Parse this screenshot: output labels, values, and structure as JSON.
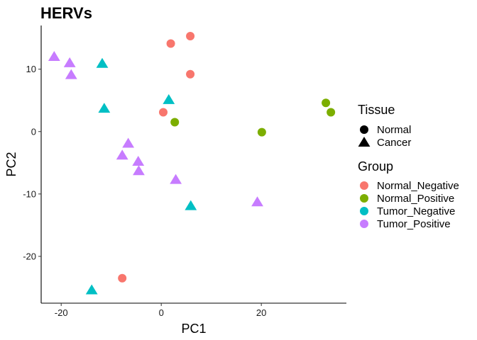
{
  "chart_data": {
    "type": "scatter",
    "title": "HERVs",
    "xlabel": "PC1",
    "ylabel": "PC2",
    "xlim": [
      -24,
      37
    ],
    "ylim": [
      -27.5,
      17
    ],
    "xticks": [
      -20,
      0,
      20
    ],
    "yticks": [
      -20,
      -10,
      0,
      10
    ],
    "grid": false,
    "legend_position": "right",
    "shape_legend": {
      "title": "Tissue",
      "items": [
        {
          "label": "Normal",
          "shape": "circle"
        },
        {
          "label": "Cancer",
          "shape": "triangle"
        }
      ]
    },
    "color_legend": {
      "title": "Group",
      "items": [
        {
          "label": "Normal_Negative",
          "color": "#F8766D"
        },
        {
          "label": "Normal_Positive",
          "color": "#7CAE00"
        },
        {
          "label": "Tumor_Negative",
          "color": "#00BFC4"
        },
        {
          "label": "Tumor_Positive",
          "color": "#C77CFF"
        }
      ]
    },
    "points": [
      {
        "x": 5.8,
        "y": 15.3,
        "group": "Normal_Negative",
        "tissue": "Normal"
      },
      {
        "x": 1.9,
        "y": 14.1,
        "group": "Normal_Negative",
        "tissue": "Normal"
      },
      {
        "x": 5.8,
        "y": 9.2,
        "group": "Normal_Negative",
        "tissue": "Normal"
      },
      {
        "x": 0.4,
        "y": 3.1,
        "group": "Normal_Negative",
        "tissue": "Normal"
      },
      {
        "x": -7.8,
        "y": -23.5,
        "group": "Normal_Negative",
        "tissue": "Normal"
      },
      {
        "x": 2.7,
        "y": 1.5,
        "group": "Normal_Positive",
        "tissue": "Normal"
      },
      {
        "x": 20.1,
        "y": -0.1,
        "group": "Normal_Positive",
        "tissue": "Normal"
      },
      {
        "x": 32.9,
        "y": 4.6,
        "group": "Normal_Positive",
        "tissue": "Normal"
      },
      {
        "x": 33.9,
        "y": 3.1,
        "group": "Normal_Positive",
        "tissue": "Normal"
      },
      {
        "x": -11.8,
        "y": 10.9,
        "group": "Tumor_Negative",
        "tissue": "Cancer"
      },
      {
        "x": -11.4,
        "y": 3.7,
        "group": "Tumor_Negative",
        "tissue": "Cancer"
      },
      {
        "x": 1.5,
        "y": 5.1,
        "group": "Tumor_Negative",
        "tissue": "Cancer"
      },
      {
        "x": 5.9,
        "y": -11.9,
        "group": "Tumor_Negative",
        "tissue": "Cancer"
      },
      {
        "x": -13.9,
        "y": -25.4,
        "group": "Tumor_Negative",
        "tissue": "Cancer"
      },
      {
        "x": -21.4,
        "y": 12.0,
        "group": "Tumor_Positive",
        "tissue": "Cancer"
      },
      {
        "x": -18.3,
        "y": 11.0,
        "group": "Tumor_Positive",
        "tissue": "Cancer"
      },
      {
        "x": -18.0,
        "y": 9.1,
        "group": "Tumor_Positive",
        "tissue": "Cancer"
      },
      {
        "x": -6.6,
        "y": -1.9,
        "group": "Tumor_Positive",
        "tissue": "Cancer"
      },
      {
        "x": -7.8,
        "y": -3.8,
        "group": "Tumor_Positive",
        "tissue": "Cancer"
      },
      {
        "x": -4.6,
        "y": -4.8,
        "group": "Tumor_Positive",
        "tissue": "Cancer"
      },
      {
        "x": -4.5,
        "y": -6.3,
        "group": "Tumor_Positive",
        "tissue": "Cancer"
      },
      {
        "x": 2.9,
        "y": -7.7,
        "group": "Tumor_Positive",
        "tissue": "Cancer"
      },
      {
        "x": 19.2,
        "y": -11.3,
        "group": "Tumor_Positive",
        "tissue": "Cancer"
      }
    ]
  }
}
